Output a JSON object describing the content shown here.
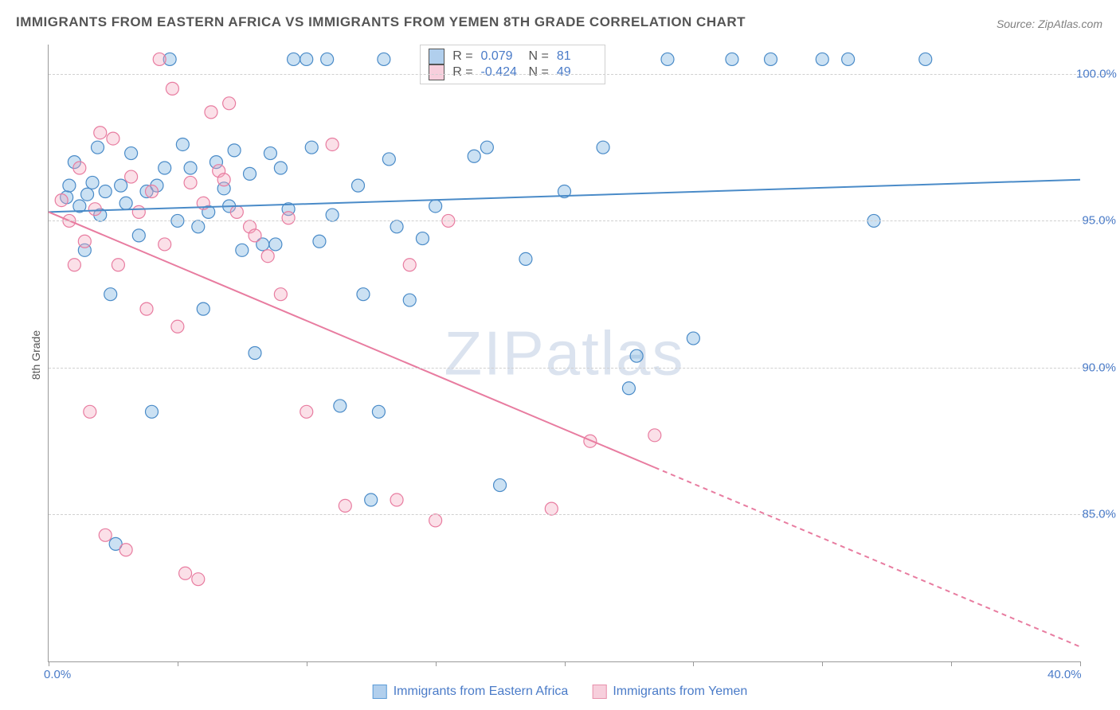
{
  "title": "IMMIGRANTS FROM EASTERN AFRICA VS IMMIGRANTS FROM YEMEN 8TH GRADE CORRELATION CHART",
  "source": "Source: ZipAtlas.com",
  "watermark": "ZIPatlas",
  "ylabel": "8th Grade",
  "chart": {
    "type": "scatter",
    "background_color": "#ffffff",
    "grid_color": "#d0d0d0",
    "xlim": [
      0,
      40
    ],
    "ylim": [
      80,
      101
    ],
    "xticks": [
      0,
      5,
      10,
      15,
      20,
      25,
      30,
      35,
      40
    ],
    "yticks": [
      85,
      90,
      95,
      100
    ],
    "xtick_labels": {
      "0": "0.0%",
      "40": "40.0%"
    },
    "ytick_format": "%.1f%%",
    "marker_radius": 8,
    "marker_fill_opacity": 0.35,
    "marker_stroke_width": 1.2,
    "trend_line_width": 2,
    "series": [
      {
        "name": "Immigrants from Eastern Africa",
        "color_fill": "#6aa9dd",
        "color_stroke": "#4a8bc8",
        "r": 0.079,
        "n": 81,
        "trend": {
          "x1": 0,
          "y1": 95.3,
          "x2": 40,
          "y2": 96.4,
          "solid_until_x": 40
        },
        "points": [
          [
            0.7,
            95.8
          ],
          [
            0.8,
            96.2
          ],
          [
            1.0,
            97.0
          ],
          [
            1.2,
            95.5
          ],
          [
            1.4,
            94.0
          ],
          [
            1.5,
            95.9
          ],
          [
            1.7,
            96.3
          ],
          [
            1.9,
            97.5
          ],
          [
            2.0,
            95.2
          ],
          [
            2.2,
            96.0
          ],
          [
            2.4,
            92.5
          ],
          [
            2.6,
            84.0
          ],
          [
            2.8,
            96.2
          ],
          [
            3.0,
            95.6
          ],
          [
            3.2,
            97.3
          ],
          [
            3.5,
            94.5
          ],
          [
            3.8,
            96.0
          ],
          [
            4.0,
            88.5
          ],
          [
            4.2,
            96.2
          ],
          [
            4.5,
            96.8
          ],
          [
            4.7,
            100.5
          ],
          [
            5.0,
            95.0
          ],
          [
            5.2,
            97.6
          ],
          [
            5.5,
            96.8
          ],
          [
            5.8,
            94.8
          ],
          [
            6.0,
            92.0
          ],
          [
            6.2,
            95.3
          ],
          [
            6.5,
            97.0
          ],
          [
            6.8,
            96.1
          ],
          [
            7.0,
            95.5
          ],
          [
            7.2,
            97.4
          ],
          [
            7.5,
            94.0
          ],
          [
            7.8,
            96.6
          ],
          [
            8.0,
            90.5
          ],
          [
            8.3,
            94.2
          ],
          [
            8.6,
            97.3
          ],
          [
            8.8,
            94.2
          ],
          [
            9.0,
            96.8
          ],
          [
            9.3,
            95.4
          ],
          [
            9.5,
            100.5
          ],
          [
            10.0,
            100.5
          ],
          [
            10.2,
            97.5
          ],
          [
            10.5,
            94.3
          ],
          [
            10.8,
            100.5
          ],
          [
            11.0,
            95.2
          ],
          [
            11.3,
            88.7
          ],
          [
            12.0,
            96.2
          ],
          [
            12.2,
            92.5
          ],
          [
            12.5,
            85.5
          ],
          [
            12.8,
            88.5
          ],
          [
            13.0,
            100.5
          ],
          [
            13.2,
            97.1
          ],
          [
            13.5,
            94.8
          ],
          [
            14.0,
            92.3
          ],
          [
            14.5,
            94.4
          ],
          [
            15.0,
            95.5
          ],
          [
            16.2,
            100.5
          ],
          [
            16.5,
            97.2
          ],
          [
            17.0,
            97.5
          ],
          [
            17.5,
            86.0
          ],
          [
            18.5,
            93.7
          ],
          [
            20.0,
            96.0
          ],
          [
            21.5,
            97.5
          ],
          [
            22.5,
            89.3
          ],
          [
            22.8,
            90.4
          ],
          [
            24.0,
            100.5
          ],
          [
            25.0,
            91.0
          ],
          [
            26.5,
            100.5
          ],
          [
            28.0,
            100.5
          ],
          [
            30.0,
            100.5
          ],
          [
            31.0,
            100.5
          ],
          [
            32.0,
            95.0
          ],
          [
            34.0,
            100.5
          ]
        ]
      },
      {
        "name": "Immigrants from Yemen",
        "color_fill": "#f4a6bc",
        "color_stroke": "#e87ca0",
        "r": -0.424,
        "n": 49,
        "trend": {
          "x1": 0,
          "y1": 95.3,
          "x2": 40,
          "y2": 80.5,
          "solid_until_x": 23.5
        },
        "points": [
          [
            0.5,
            95.7
          ],
          [
            0.8,
            95.0
          ],
          [
            1.0,
            93.5
          ],
          [
            1.2,
            96.8
          ],
          [
            1.4,
            94.3
          ],
          [
            1.6,
            88.5
          ],
          [
            1.8,
            95.4
          ],
          [
            2.0,
            98.0
          ],
          [
            2.2,
            84.3
          ],
          [
            2.5,
            97.8
          ],
          [
            2.7,
            93.5
          ],
          [
            3.0,
            83.8
          ],
          [
            3.2,
            96.5
          ],
          [
            3.5,
            95.3
          ],
          [
            3.8,
            92.0
          ],
          [
            4.0,
            96.0
          ],
          [
            4.3,
            100.5
          ],
          [
            4.5,
            94.2
          ],
          [
            4.8,
            99.5
          ],
          [
            5.0,
            91.4
          ],
          [
            5.3,
            83.0
          ],
          [
            5.5,
            96.3
          ],
          [
            5.8,
            82.8
          ],
          [
            6.0,
            95.6
          ],
          [
            6.3,
            98.7
          ],
          [
            6.6,
            96.7
          ],
          [
            6.8,
            96.4
          ],
          [
            7.0,
            99.0
          ],
          [
            7.3,
            95.3
          ],
          [
            7.8,
            94.8
          ],
          [
            8.0,
            94.5
          ],
          [
            8.5,
            93.8
          ],
          [
            9.0,
            92.5
          ],
          [
            9.3,
            95.1
          ],
          [
            10.0,
            88.5
          ],
          [
            11.0,
            97.6
          ],
          [
            11.5,
            85.3
          ],
          [
            13.5,
            85.5
          ],
          [
            14.0,
            93.5
          ],
          [
            15.0,
            84.8
          ],
          [
            15.5,
            95.0
          ],
          [
            19.5,
            85.2
          ],
          [
            21.0,
            87.5
          ],
          [
            23.5,
            87.7
          ]
        ]
      }
    ]
  },
  "legend": {
    "stats_labels": {
      "r": "R =",
      "n": "N ="
    }
  }
}
